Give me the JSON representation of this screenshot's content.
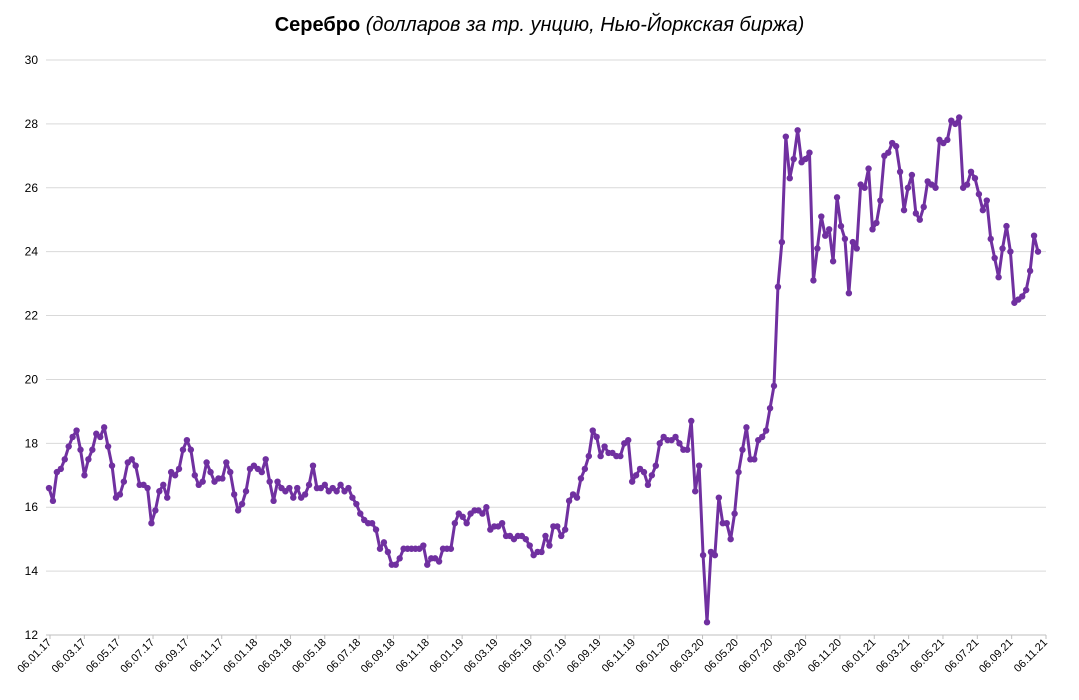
{
  "chart_data": {
    "type": "line",
    "title": "Серебро",
    "subtitle": "(долларов за тр. унцию, Нью-Йоркская биржа)",
    "xlabel": "",
    "ylabel": "",
    "ylim": [
      12,
      30
    ],
    "yticks": [
      "12",
      "14",
      "16",
      "18",
      "20",
      "22",
      "24",
      "26",
      "28",
      "30"
    ],
    "grid": "horizontal",
    "legend": "none",
    "x_tick_labels": [
      "06.01.17",
      "06.03.17",
      "06.05.17",
      "06.07.17",
      "06.09.17",
      "06.11.17",
      "06.01.18",
      "06.03.18",
      "06.05.18",
      "06.07.18",
      "06.09.18",
      "06.11.18",
      "06.01.19",
      "06.03.19",
      "06.05.19",
      "06.07.19",
      "06.09.19",
      "06.11.19",
      "06.01.20",
      "06.03.20",
      "06.05.20",
      "06.07.20",
      "06.09.20",
      "06.11.20",
      "06.01.21",
      "06.03.21",
      "06.05.21",
      "06.07.21",
      "06.09.21",
      "06.11.21"
    ],
    "x_range": [
      "06.01.17",
      "06.11.21"
    ],
    "series_color": "#7030a0",
    "values": [
      16.6,
      16.2,
      17.1,
      17.2,
      17.5,
      17.9,
      18.2,
      18.4,
      17.8,
      17.0,
      17.5,
      17.8,
      18.3,
      18.2,
      18.5,
      17.9,
      17.3,
      16.3,
      16.4,
      16.8,
      17.4,
      17.5,
      17.3,
      16.7,
      16.7,
      16.6,
      15.5,
      15.9,
      16.5,
      16.7,
      16.3,
      17.1,
      17.0,
      17.2,
      17.8,
      18.1,
      17.8,
      17.0,
      16.7,
      16.8,
      17.4,
      17.1,
      16.8,
      16.9,
      16.9,
      17.4,
      17.1,
      16.4,
      15.9,
      16.1,
      16.5,
      17.2,
      17.3,
      17.2,
      17.1,
      17.5,
      16.8,
      16.2,
      16.8,
      16.6,
      16.5,
      16.6,
      16.3,
      16.6,
      16.3,
      16.4,
      16.7,
      17.3,
      16.6,
      16.6,
      16.7,
      16.5,
      16.6,
      16.5,
      16.7,
      16.5,
      16.6,
      16.3,
      16.1,
      15.8,
      15.6,
      15.5,
      15.5,
      15.3,
      14.7,
      14.9,
      14.6,
      14.2,
      14.2,
      14.4,
      14.7,
      14.7,
      14.7,
      14.7,
      14.7,
      14.8,
      14.2,
      14.4,
      14.4,
      14.3,
      14.7,
      14.7,
      14.7,
      15.5,
      15.8,
      15.7,
      15.5,
      15.8,
      15.9,
      15.9,
      15.8,
      16.0,
      15.3,
      15.4,
      15.4,
      15.5,
      15.1,
      15.1,
      15.0,
      15.1,
      15.1,
      15.0,
      14.8,
      14.5,
      14.6,
      14.6,
      15.1,
      14.8,
      15.4,
      15.4,
      15.1,
      15.3,
      16.2,
      16.4,
      16.3,
      16.9,
      17.2,
      17.6,
      18.4,
      18.2,
      17.6,
      17.9,
      17.7,
      17.7,
      17.6,
      17.6,
      18.0,
      18.1,
      16.8,
      17.0,
      17.2,
      17.1,
      16.7,
      17.0,
      17.3,
      18.0,
      18.2,
      18.1,
      18.1,
      18.2,
      18.0,
      17.8,
      17.8,
      18.7,
      16.5,
      17.3,
      14.5,
      12.4,
      14.6,
      14.5,
      16.3,
      15.5,
      15.5,
      15.0,
      15.8,
      17.1,
      17.8,
      18.5,
      17.5,
      17.5,
      18.1,
      18.2,
      18.4,
      19.1,
      19.8,
      22.9,
      24.3,
      27.6,
      26.3,
      26.9,
      27.8,
      26.8,
      26.9,
      27.1,
      23.1,
      24.1,
      25.1,
      24.5,
      24.7,
      23.7,
      25.7,
      24.8,
      24.4,
      22.7,
      24.3,
      24.1,
      26.1,
      26.0,
      26.6,
      24.7,
      24.9,
      25.6,
      27.0,
      27.1,
      27.4,
      27.3,
      26.5,
      25.3,
      26.0,
      26.4,
      25.2,
      25.0,
      25.4,
      26.2,
      26.1,
      26.0,
      27.5,
      27.4,
      27.5,
      28.1,
      28.0,
      28.2,
      26.0,
      26.1,
      26.5,
      26.3,
      25.8,
      25.3,
      25.6,
      24.4,
      23.8,
      23.2,
      24.1,
      24.8,
      24.0,
      22.4,
      22.5,
      22.6,
      22.8,
      23.4,
      24.5,
      24.0
    ]
  }
}
